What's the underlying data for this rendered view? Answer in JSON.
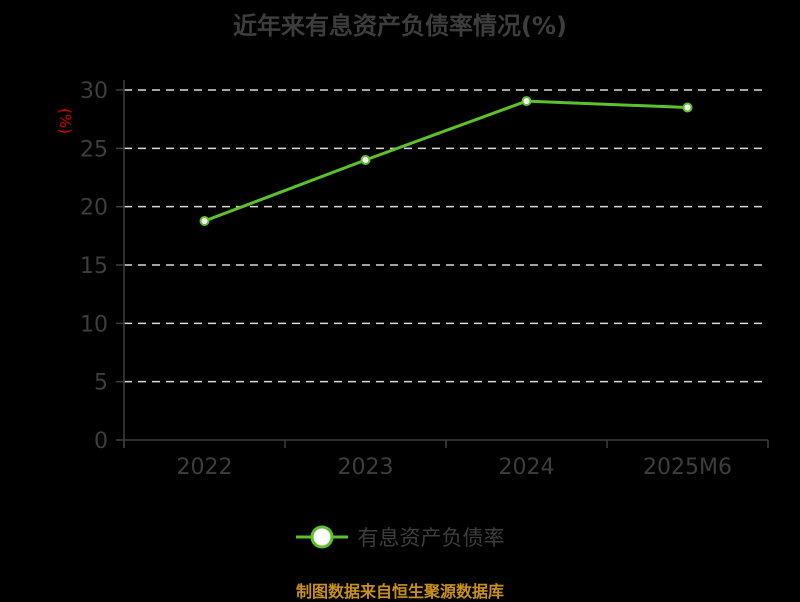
{
  "title": "近年来有息资产负债率情况(%)",
  "unit_label": "(%)",
  "legend": {
    "label": "有息资产负债率"
  },
  "source": "制图数据来自恒生聚源数据库",
  "colors": {
    "line": "#5cc22a",
    "marker_fill": "#ffffff",
    "grid": "#d9d9d9",
    "axis": "#3d3d3d",
    "tick_text": "#3d3d3d",
    "unit": "#e00000",
    "source": "#c8901a"
  },
  "chart_data": {
    "type": "line",
    "title": "近年来有息资产负债率情况(%)",
    "xlabel": "",
    "ylabel": "(%)",
    "categories": [
      "2022",
      "2023",
      "2024",
      "2025M6"
    ],
    "series": [
      {
        "name": "有息资产负债率",
        "values": [
          18.77,
          24.0,
          29.05,
          28.5
        ]
      }
    ],
    "ylim": [
      0,
      30
    ],
    "yticks": [
      0,
      5,
      10,
      15,
      20,
      25,
      30
    ],
    "grid": true,
    "legend_position": "bottom"
  }
}
